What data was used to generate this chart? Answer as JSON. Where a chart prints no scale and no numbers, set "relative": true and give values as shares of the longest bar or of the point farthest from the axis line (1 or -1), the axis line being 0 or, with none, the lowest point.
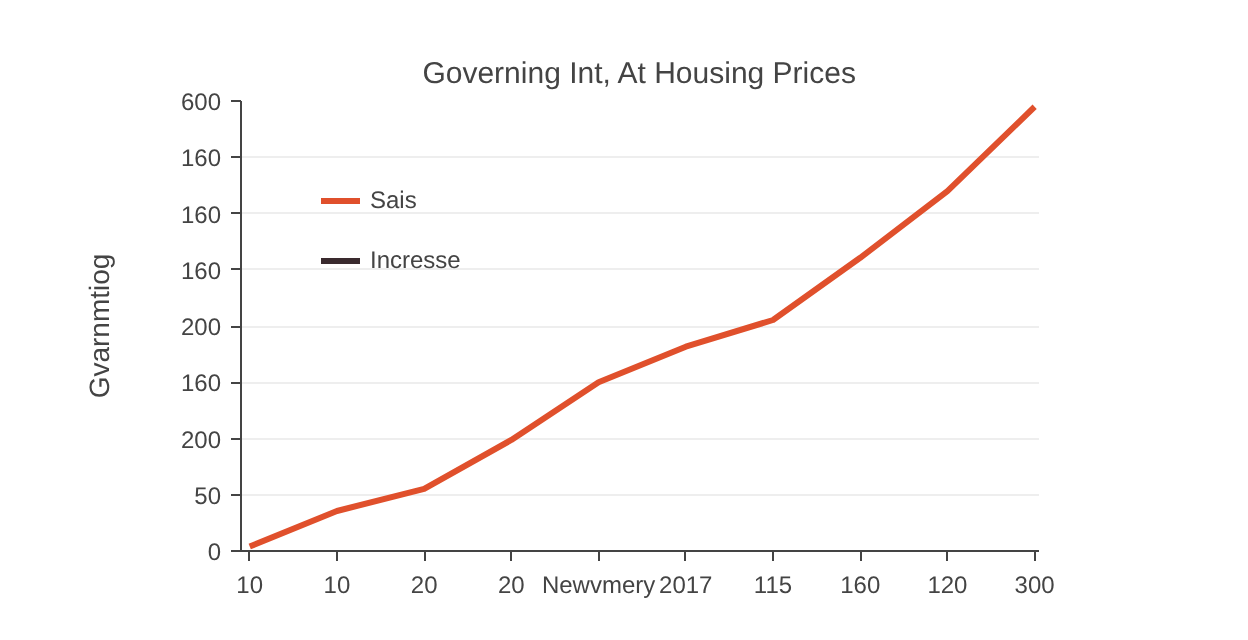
{
  "chart_data": {
    "type": "line",
    "title": "Governing Int, At Housing Prices",
    "ylabel": "Gvarnmtiog",
    "relative": true,
    "categories": [
      "10",
      "10",
      "20",
      "20",
      "Newvmery",
      "2017",
      "115",
      "160",
      "120",
      "300"
    ],
    "series": [
      {
        "name": "Sais",
        "color": "#e0502c",
        "values": [
          0.01,
          0.09,
          0.14,
          0.25,
          0.38,
          0.46,
          0.52,
          0.66,
          0.81,
          1
        ]
      },
      {
        "name": "Incresse",
        "color": "#3a2a2e",
        "values": [
          null,
          null,
          null,
          null,
          null,
          null,
          null,
          null,
          null,
          null
        ]
      }
    ],
    "annotations": [
      "0",
      "50",
      "200",
      "160",
      "200",
      "160",
      "160",
      "160",
      "600"
    ],
    "grid": "y",
    "legend": "top left",
    "line_style": "solid"
  }
}
